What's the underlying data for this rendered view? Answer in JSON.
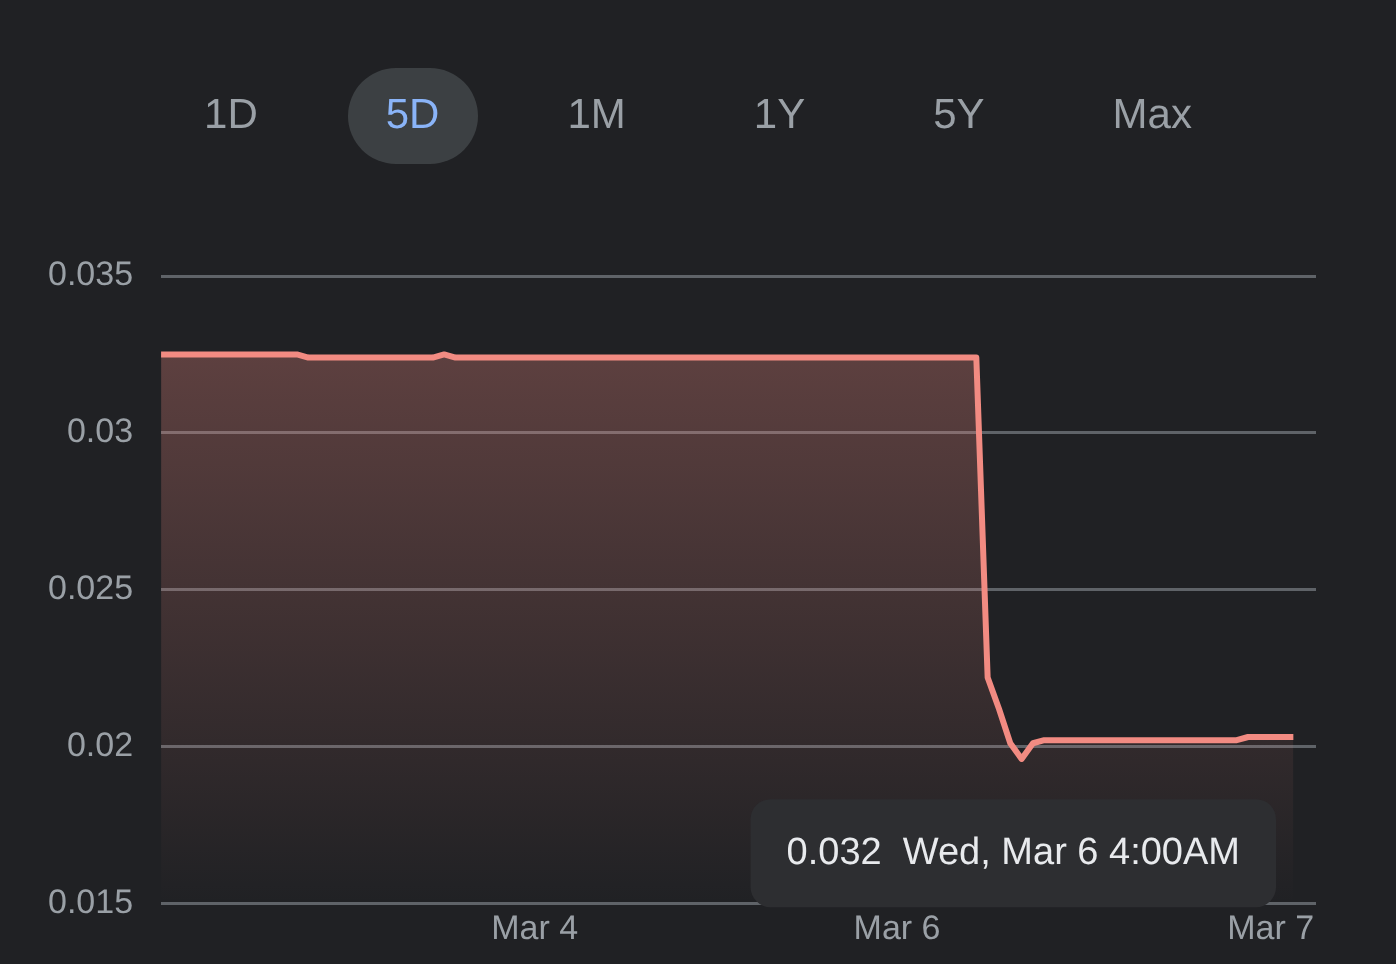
{
  "chart_data": {
    "type": "area",
    "categories": [
      null,
      null,
      null,
      null,
      null,
      null,
      null,
      null,
      null,
      null,
      null,
      null,
      null,
      null,
      null,
      null,
      null,
      null,
      null,
      null,
      null,
      null,
      null,
      null,
      null,
      null,
      null,
      null,
      null,
      null,
      null,
      null,
      null,
      "Mar 4",
      null,
      null,
      null,
      null,
      null,
      null,
      null,
      null,
      null,
      null,
      null,
      null,
      null,
      null,
      null,
      null,
      null,
      null,
      null,
      null,
      null,
      null,
      null,
      null,
      null,
      null,
      null,
      null,
      null,
      null,
      null,
      "Mar 6",
      null,
      null,
      null,
      null,
      null,
      null,
      null,
      null,
      null,
      null,
      null,
      null,
      null,
      null,
      null,
      null,
      null,
      null,
      null,
      null,
      null,
      null,
      null,
      null,
      null,
      null,
      null,
      null,
      null,
      null,
      null,
      null,
      "Mar 7",
      null,
      null,
      null,
      null
    ],
    "series": [
      {
        "color": "#f28b82",
        "values": [
          0.0325,
          0.0325,
          0.0325,
          0.0325,
          0.0325,
          0.0325,
          0.0325,
          0.0325,
          0.0325,
          0.0325,
          0.0325,
          0.0325,
          0.0325,
          0.0324,
          0.0324,
          0.0324,
          0.0324,
          0.0324,
          0.0324,
          0.0324,
          0.0324,
          0.0324,
          0.0324,
          0.0324,
          0.0324,
          0.0325,
          0.0324,
          0.0324,
          0.0324,
          0.0324,
          0.0324,
          0.0324,
          0.0324,
          0.0324,
          0.0324,
          0.0324,
          0.0324,
          0.0324,
          0.0324,
          0.0324,
          0.0324,
          0.0324,
          0.0324,
          0.0324,
          0.0324,
          0.0324,
          0.0324,
          0.0324,
          0.0324,
          0.0324,
          0.0324,
          0.0324,
          0.0324,
          0.0324,
          0.0324,
          0.0324,
          0.0324,
          0.0324,
          0.0324,
          0.0324,
          0.0324,
          0.0324,
          0.0324,
          0.0324,
          0.0324,
          0.0324,
          0.0324,
          0.0324,
          0.0324,
          0.0324,
          0.0324,
          0.0324,
          0.0324,
          0.0222,
          0.0212,
          0.0201,
          0.0196,
          0.0201,
          0.0202,
          0.0202,
          0.0202,
          0.0202,
          0.0202,
          0.0202,
          0.0202,
          0.0202,
          0.0202,
          0.0202,
          0.0202,
          0.0202,
          0.0202,
          0.0202,
          0.0202,
          0.0202,
          0.0202,
          0.0202,
          0.0203,
          0.0203,
          0.0203,
          0.0203,
          0.0203,
          null,
          null
        ]
      }
    ],
    "ylim": [
      0.015,
      0.035
    ],
    "yticks": [
      0.015,
      0.02,
      0.025,
      0.03,
      0.035
    ],
    "grid": "y",
    "legend": false,
    "marker": "none",
    "line_style": "solid",
    "annotations": [
      "1D",
      "5D",
      "1M",
      "1Y",
      "5Y",
      "Max",
      "0.032  Wed, Mar 6 4:00AM"
    ]
  }
}
